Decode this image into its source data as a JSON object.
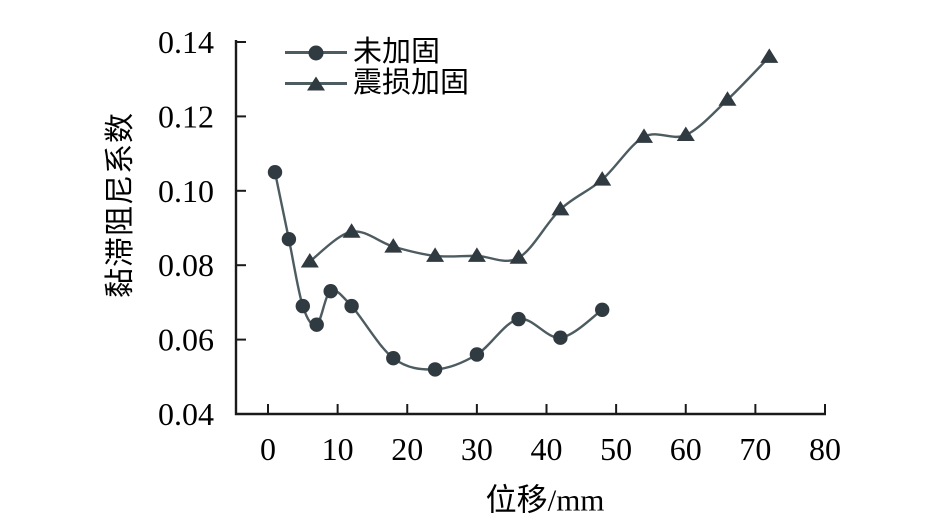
{
  "figure": {
    "background": "#ffffff"
  },
  "chart_data": {
    "type": "line",
    "title": "",
    "xlabel": "位移/mm",
    "ylabel": "黏滞阻尼系数",
    "xlim": [
      0,
      80
    ],
    "ylim": [
      0.04,
      0.14
    ],
    "grid": false,
    "legend_position": "inside-top-left",
    "x_ticks": {
      "values": [
        0,
        10,
        20,
        30,
        40,
        50,
        60,
        70,
        80
      ],
      "labels": [
        "0",
        "10",
        "20",
        "30",
        "40",
        "50",
        "60",
        "70",
        "80"
      ]
    },
    "y_ticks": {
      "values": [
        0.04,
        0.06,
        0.08,
        0.1,
        0.12,
        0.14
      ],
      "labels": [
        "0.04",
        "0.06",
        "0.08",
        "0.10",
        "0.12",
        "0.14"
      ]
    },
    "line_color": "#4d5c61",
    "marker_color": "#303a41",
    "axis_color": "#1a1a1a",
    "text_color": "#000000",
    "series": [
      {
        "id": "unreinforced",
        "name": "未加固",
        "marker": "circle",
        "x": [
          1,
          3,
          5,
          7,
          9,
          12,
          18,
          24,
          30,
          36,
          42,
          48
        ],
        "y": [
          0.105,
          0.087,
          0.069,
          0.064,
          0.073,
          0.069,
          0.055,
          0.052,
          0.056,
          0.0655,
          0.0605,
          0.068
        ]
      },
      {
        "id": "reinforced",
        "name": "震损加固",
        "marker": "triangle",
        "x": [
          6,
          12,
          18,
          24,
          30,
          36,
          42,
          48,
          54,
          60,
          66,
          72
        ],
        "y": [
          0.081,
          0.089,
          0.085,
          0.0825,
          0.0825,
          0.082,
          0.095,
          0.103,
          0.1145,
          0.115,
          0.1245,
          0.136
        ]
      }
    ]
  }
}
